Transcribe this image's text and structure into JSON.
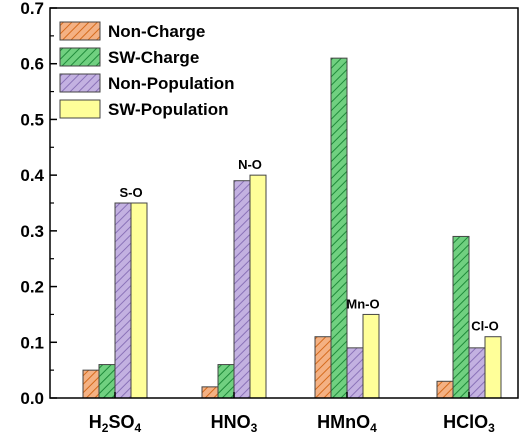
{
  "chart_data": {
    "type": "bar",
    "categories": [
      "H2SO4",
      "HNO3",
      "HMnO4",
      "HClO3"
    ],
    "category_labels": [
      {
        "parts": [
          "H",
          "2",
          "SO",
          "4"
        ]
      },
      {
        "parts": [
          "HNO",
          "3"
        ]
      },
      {
        "parts": [
          "HMnO",
          "4"
        ]
      },
      {
        "parts": [
          "HClO",
          "3"
        ]
      }
    ],
    "series": [
      {
        "name": "Non-Charge",
        "values": [
          0.05,
          0.02,
          0.11,
          0.03
        ],
        "color": "#f4b183",
        "hatch": "#d46a1c"
      },
      {
        "name": "SW-Charge",
        "values": [
          0.06,
          0.06,
          0.61,
          0.29
        ],
        "color": "#70d080",
        "hatch": "#1f8a3a"
      },
      {
        "name": "Non-Population",
        "values": [
          0.35,
          0.39,
          0.09,
          0.09
        ],
        "color": "#c3b1e1",
        "hatch": "#8a72b8"
      },
      {
        "name": "SW-Population",
        "values": [
          0.35,
          0.4,
          0.15,
          0.11
        ],
        "color": "#ffff99",
        "hatch": ""
      }
    ],
    "annotations": [
      "S-O",
      "N-O",
      "Mn-O",
      "Cl-O"
    ],
    "yticks": [
      "0.0",
      "0.1",
      "0.2",
      "0.3",
      "0.4",
      "0.5",
      "0.6",
      "0.7"
    ],
    "ylim": [
      0,
      0.7
    ],
    "legend_position": "top-left",
    "grid": false
  }
}
